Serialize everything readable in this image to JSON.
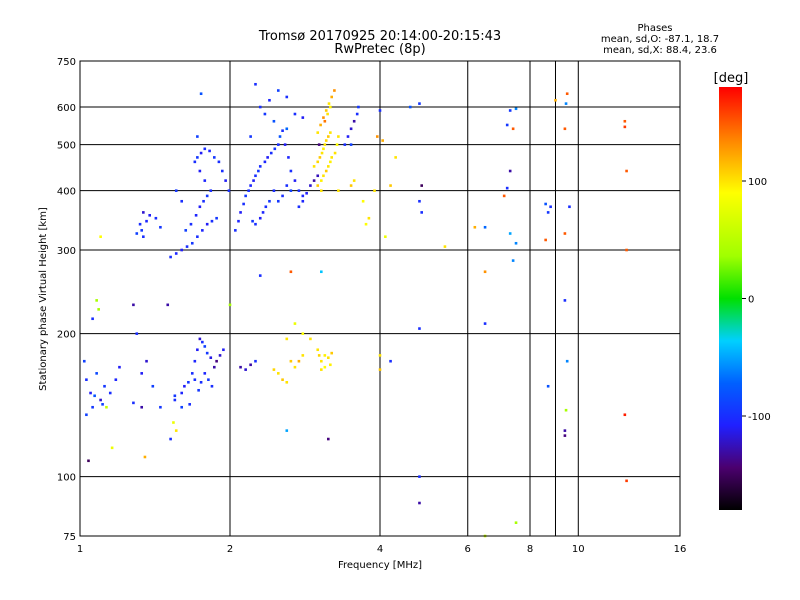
{
  "header": {
    "title_line1": "Tromsø 20170925 20:14:00-20:15:43",
    "title_line2": "RwPretec (8p)",
    "phases_title": "Phases",
    "phases_line1": "mean, sd,O: -87.1, 18.7",
    "phases_line2": "mean, sd,X:  88.4, 23.6"
  },
  "chart_data": {
    "type": "scatter",
    "title": "Tromsø 20170925 20:14:00-20:15:43",
    "subtitle": "RwPretec (8p)",
    "xlabel": "Frequency [MHz]",
    "ylabel": "Stationary phase Virtual Height [km]",
    "x_scale": "log",
    "y_scale": "log",
    "xlim": [
      1,
      16
    ],
    "ylim": [
      75,
      750
    ],
    "x_ticks": [
      1,
      2,
      4,
      6,
      8,
      10,
      16
    ],
    "x_tick_labels": [
      "1",
      "2",
      "4",
      "6",
      "8",
      "10",
      "16"
    ],
    "x_minor_ticks": [
      9
    ],
    "y_ticks": [
      75,
      100,
      200,
      300,
      400,
      500,
      600,
      750
    ],
    "y_tick_labels": [
      "75",
      "100",
      "200",
      "300",
      "400",
      "500",
      "600",
      "750"
    ],
    "grid": true,
    "colorbar": {
      "label": "[deg]",
      "range": [
        -180,
        180
      ],
      "ticks": [
        -100,
        0,
        100
      ],
      "tick_labels": [
        "-100",
        "0",
        "100"
      ]
    },
    "points": [
      [
        1.02,
        175,
        -90
      ],
      [
        1.03,
        160,
        -100
      ],
      [
        1.05,
        150,
        -110
      ],
      [
        1.06,
        140,
        -95
      ],
      [
        1.08,
        165,
        -85
      ],
      [
        1.1,
        145,
        -120
      ],
      [
        1.12,
        155,
        -95
      ],
      [
        1.15,
        150,
        -100
      ],
      [
        1.18,
        160,
        -105
      ],
      [
        1.2,
        170,
        -110
      ],
      [
        1.03,
        135,
        -90
      ],
      [
        1.07,
        148,
        -80
      ],
      [
        1.04,
        108,
        -150
      ],
      [
        1.11,
        142,
        -90
      ],
      [
        1.06,
        215,
        -100
      ],
      [
        1.09,
        225,
        40
      ],
      [
        1.08,
        235,
        40
      ],
      [
        1.1,
        320,
        90
      ],
      [
        1.13,
        140,
        60
      ],
      [
        1.16,
        115,
        80
      ],
      [
        1.35,
        110,
        120
      ],
      [
        1.3,
        200,
        -100
      ],
      [
        1.33,
        165,
        -110
      ],
      [
        1.36,
        175,
        -120
      ],
      [
        1.4,
        155,
        -90
      ],
      [
        1.45,
        140,
        -95
      ],
      [
        1.28,
        143,
        -100
      ],
      [
        1.33,
        140,
        -130
      ],
      [
        1.32,
        340,
        -100
      ],
      [
        1.33,
        330,
        -95
      ],
      [
        1.36,
        345,
        -105
      ],
      [
        1.38,
        355,
        -110
      ],
      [
        1.42,
        350,
        -100
      ],
      [
        1.45,
        335,
        -95
      ],
      [
        1.3,
        325,
        -90
      ],
      [
        1.34,
        320,
        -100
      ],
      [
        1.55,
        145,
        -100
      ],
      [
        1.6,
        150,
        -105
      ],
      [
        1.62,
        155,
        -110
      ],
      [
        1.65,
        158,
        -95
      ],
      [
        1.68,
        165,
        -100
      ],
      [
        1.7,
        175,
        -105
      ],
      [
        1.72,
        185,
        -110
      ],
      [
        1.74,
        195,
        -120
      ],
      [
        1.76,
        192,
        -100
      ],
      [
        1.78,
        188,
        -90
      ],
      [
        1.8,
        182,
        -95
      ],
      [
        1.83,
        178,
        -115
      ],
      [
        1.86,
        170,
        -130
      ],
      [
        1.88,
        175,
        -140
      ],
      [
        1.91,
        180,
        -120
      ],
      [
        1.94,
        185,
        -110
      ],
      [
        1.7,
        160,
        -100
      ],
      [
        1.73,
        152,
        -95
      ],
      [
        1.75,
        158,
        -100
      ],
      [
        1.78,
        165,
        -105
      ],
      [
        1.81,
        160,
        -95
      ],
      [
        1.84,
        155,
        -100
      ],
      [
        1.66,
        142,
        -100
      ],
      [
        1.6,
        140,
        -90
      ],
      [
        1.55,
        148,
        -95
      ],
      [
        1.5,
        230,
        -130
      ],
      [
        1.28,
        230,
        -130
      ],
      [
        1.54,
        130,
        80
      ],
      [
        1.56,
        125,
        100
      ],
      [
        1.52,
        120,
        -100
      ],
      [
        1.34,
        360,
        -120
      ],
      [
        1.52,
        290,
        -100
      ],
      [
        1.56,
        295,
        -105
      ],
      [
        1.6,
        300,
        -110
      ],
      [
        1.64,
        305,
        -100
      ],
      [
        1.68,
        310,
        -95
      ],
      [
        1.72,
        320,
        -100
      ],
      [
        1.76,
        330,
        -105
      ],
      [
        1.8,
        340,
        -110
      ],
      [
        1.84,
        345,
        -100
      ],
      [
        1.88,
        350,
        -95
      ],
      [
        1.63,
        330,
        -90
      ],
      [
        1.67,
        340,
        -100
      ],
      [
        1.71,
        355,
        -105
      ],
      [
        1.74,
        370,
        -110
      ],
      [
        1.77,
        380,
        -100
      ],
      [
        1.8,
        390,
        -95
      ],
      [
        1.83,
        400,
        -100
      ],
      [
        1.78,
        420,
        -105
      ],
      [
        1.74,
        440,
        -110
      ],
      [
        1.7,
        460,
        -100
      ],
      [
        1.72,
        470,
        -95
      ],
      [
        1.75,
        480,
        -110
      ],
      [
        1.78,
        490,
        -100
      ],
      [
        1.82,
        485,
        -105
      ],
      [
        1.86,
        470,
        -95
      ],
      [
        1.9,
        460,
        -100
      ],
      [
        1.93,
        440,
        -100
      ],
      [
        1.96,
        420,
        -110
      ],
      [
        1.99,
        400,
        -100
      ],
      [
        1.72,
        520,
        -90
      ],
      [
        1.75,
        640,
        -80
      ],
      [
        1.6,
        380,
        -100
      ],
      [
        1.56,
        400,
        -95
      ],
      [
        2.05,
        330,
        -100
      ],
      [
        2.08,
        345,
        -105
      ],
      [
        2.1,
        360,
        -110
      ],
      [
        2.13,
        375,
        -100
      ],
      [
        2.15,
        390,
        -95
      ],
      [
        2.18,
        400,
        -100
      ],
      [
        2.2,
        410,
        -105
      ],
      [
        2.23,
        420,
        -110
      ],
      [
        2.25,
        430,
        -100
      ],
      [
        2.28,
        440,
        -95
      ],
      [
        2.3,
        450,
        -100
      ],
      [
        2.35,
        460,
        -105
      ],
      [
        2.38,
        470,
        -110
      ],
      [
        2.42,
        480,
        -100
      ],
      [
        2.46,
        490,
        -95
      ],
      [
        2.5,
        500,
        -100
      ],
      [
        2.52,
        520,
        -80
      ],
      [
        2.55,
        535,
        -100
      ],
      [
        2.58,
        500,
        -110
      ],
      [
        2.62,
        470,
        -105
      ],
      [
        2.65,
        440,
        -100
      ],
      [
        2.7,
        420,
        -110
      ],
      [
        2.75,
        400,
        -100
      ],
      [
        2.8,
        390,
        -105
      ],
      [
        2.85,
        395,
        -110
      ],
      [
        2.9,
        410,
        -120
      ],
      [
        2.95,
        420,
        -130
      ],
      [
        3.0,
        430,
        -125
      ],
      [
        2.45,
        400,
        -100
      ],
      [
        2.4,
        380,
        -95
      ],
      [
        2.36,
        370,
        -100
      ],
      [
        2.33,
        360,
        -105
      ],
      [
        2.3,
        350,
        -110
      ],
      [
        2.25,
        340,
        -100
      ],
      [
        2.22,
        345,
        -95
      ],
      [
        2.6,
        410,
        -100
      ],
      [
        2.65,
        400,
        -90
      ],
      [
        2.55,
        390,
        -100
      ],
      [
        2.5,
        380,
        -95
      ],
      [
        2.75,
        370,
        -100
      ],
      [
        2.8,
        380,
        -105
      ],
      [
        2.3,
        600,
        -100
      ],
      [
        2.2,
        520,
        -95
      ],
      [
        2.25,
        670,
        -100
      ],
      [
        2.4,
        620,
        -105
      ],
      [
        2.5,
        650,
        -90
      ],
      [
        2.6,
        630,
        -100
      ],
      [
        2.45,
        560,
        -80
      ],
      [
        2.35,
        580,
        -95
      ],
      [
        2.6,
        540,
        -70
      ],
      [
        2.7,
        580,
        -100
      ],
      [
        2.8,
        570,
        -110
      ],
      [
        2.95,
        450,
        100
      ],
      [
        3.0,
        460,
        105
      ],
      [
        3.03,
        470,
        110
      ],
      [
        3.06,
        480,
        100
      ],
      [
        3.08,
        490,
        95
      ],
      [
        3.1,
        500,
        100
      ],
      [
        3.12,
        510,
        105
      ],
      [
        3.15,
        520,
        110
      ],
      [
        3.18,
        530,
        100
      ],
      [
        3.05,
        420,
        95
      ],
      [
        3.08,
        430,
        100
      ],
      [
        3.12,
        440,
        110
      ],
      [
        3.15,
        450,
        100
      ],
      [
        3.18,
        460,
        95
      ],
      [
        3.2,
        470,
        100
      ],
      [
        3.04,
        550,
        120
      ],
      [
        3.08,
        570,
        130
      ],
      [
        3.12,
        590,
        110
      ],
      [
        3.16,
        610,
        100
      ],
      [
        3.2,
        630,
        120
      ],
      [
        3.24,
        650,
        130
      ],
      [
        3.1,
        560,
        140
      ],
      [
        3.14,
        580,
        100
      ],
      [
        3.18,
        600,
        95
      ],
      [
        3.0,
        530,
        100
      ],
      [
        3.02,
        500,
        -140
      ],
      [
        3.25,
        480,
        100
      ],
      [
        3.28,
        500,
        90
      ],
      [
        3.3,
        520,
        100
      ],
      [
        3.0,
        410,
        110
      ],
      [
        3.05,
        400,
        100
      ],
      [
        3.4,
        500,
        -100
      ],
      [
        3.45,
        520,
        -110
      ],
      [
        3.5,
        540,
        -120
      ],
      [
        3.55,
        560,
        -130
      ],
      [
        3.6,
        580,
        -100
      ],
      [
        3.5,
        500,
        -90
      ],
      [
        3.62,
        600,
        -95
      ],
      [
        3.3,
        400,
        100
      ],
      [
        3.5,
        410,
        110
      ],
      [
        3.55,
        420,
        100
      ],
      [
        3.7,
        380,
        90
      ],
      [
        3.8,
        350,
        100
      ],
      [
        3.75,
        340,
        90
      ],
      [
        3.95,
        520,
        130
      ],
      [
        4.05,
        510,
        120
      ],
      [
        4.3,
        470,
        100
      ],
      [
        4.0,
        590,
        -100
      ],
      [
        3.9,
        400,
        100
      ],
      [
        4.1,
        320,
        80
      ],
      [
        4.2,
        410,
        110
      ],
      [
        2.65,
        270,
        150
      ],
      [
        3.05,
        270,
        -40
      ],
      [
        2.3,
        265,
        -100
      ],
      [
        2.0,
        230,
        40
      ],
      [
        3.05,
        175,
        100
      ],
      [
        3.1,
        180,
        95
      ],
      [
        3.15,
        178,
        100
      ],
      [
        3.2,
        182,
        110
      ],
      [
        3.1,
        170,
        90
      ],
      [
        3.05,
        168,
        100
      ],
      [
        3.18,
        172,
        95
      ],
      [
        3.0,
        185,
        100
      ],
      [
        2.9,
        195,
        100
      ],
      [
        3.02,
        180,
        105
      ],
      [
        2.8,
        200,
        90
      ],
      [
        2.5,
        165,
        100
      ],
      [
        2.55,
        160,
        110
      ],
      [
        2.6,
        158,
        100
      ],
      [
        2.45,
        168,
        105
      ],
      [
        2.7,
        170,
        100
      ],
      [
        2.65,
        175,
        110
      ],
      [
        2.75,
        175,
        120
      ],
      [
        2.8,
        180,
        100
      ],
      [
        2.6,
        195,
        100
      ],
      [
        2.7,
        210,
        80
      ],
      [
        2.1,
        170,
        -130
      ],
      [
        2.15,
        168,
        -120
      ],
      [
        2.2,
        172,
        -130
      ],
      [
        2.25,
        175,
        -100
      ],
      [
        2.6,
        125,
        -50
      ],
      [
        3.15,
        120,
        -140
      ],
      [
        4.0,
        180,
        100
      ],
      [
        4.0,
        168,
        110
      ],
      [
        4.2,
        175,
        -100
      ],
      [
        4.8,
        205,
        -100
      ],
      [
        4.8,
        100,
        -100
      ],
      [
        4.8,
        88,
        -130
      ],
      [
        4.8,
        610,
        -95
      ],
      [
        4.6,
        600,
        -80
      ],
      [
        4.85,
        410,
        -150
      ],
      [
        4.8,
        380,
        -100
      ],
      [
        4.85,
        360,
        -100
      ],
      [
        5.4,
        305,
        100
      ],
      [
        6.2,
        335,
        120
      ],
      [
        6.5,
        335,
        -70
      ],
      [
        6.5,
        270,
        130
      ],
      [
        6.5,
        210,
        -100
      ],
      [
        6.5,
        75,
        60
      ],
      [
        7.2,
        405,
        -100
      ],
      [
        7.3,
        440,
        -130
      ],
      [
        7.2,
        550,
        -95
      ],
      [
        7.3,
        590,
        -95
      ],
      [
        7.1,
        390,
        150
      ],
      [
        7.3,
        325,
        -50
      ],
      [
        7.5,
        310,
        -60
      ],
      [
        7.4,
        285,
        -60
      ],
      [
        7.5,
        80,
        40
      ],
      [
        7.5,
        595,
        -60
      ],
      [
        7.4,
        540,
        150
      ],
      [
        8.6,
        375,
        -80
      ],
      [
        8.8,
        370,
        -100
      ],
      [
        8.7,
        360,
        -95
      ],
      [
        8.6,
        315,
        150
      ],
      [
        8.7,
        155,
        -80
      ],
      [
        9.4,
        325,
        150
      ],
      [
        9.4,
        235,
        -100
      ],
      [
        9.5,
        175,
        -60
      ],
      [
        9.45,
        138,
        40
      ],
      [
        9.4,
        122,
        -140
      ],
      [
        9.4,
        125,
        -130
      ],
      [
        9.6,
        370,
        -100
      ],
      [
        9.5,
        640,
        150
      ],
      [
        9.45,
        610,
        -60
      ],
      [
        9.4,
        540,
        150
      ],
      [
        9.0,
        620,
        120
      ],
      [
        12.4,
        560,
        150
      ],
      [
        12.4,
        545,
        160
      ],
      [
        12.5,
        440,
        150
      ],
      [
        12.5,
        300,
        150
      ],
      [
        12.4,
        135,
        170
      ],
      [
        12.5,
        98,
        160
      ]
    ]
  }
}
